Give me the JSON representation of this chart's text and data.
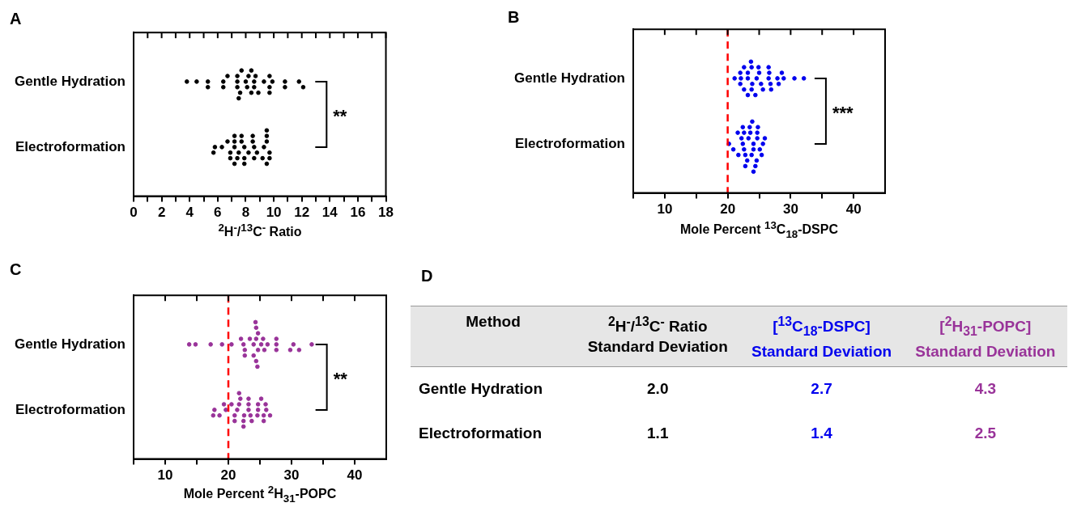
{
  "chart_data": [
    {
      "type": "scatter",
      "title": "A",
      "orientation": "horizontal",
      "xlabel": "$^{2}$H$^{-}$/$^{13}$C$^{-}$ Ratio",
      "categories": [
        "Gentle Hydration",
        "Electroformation"
      ],
      "xlim": [
        0,
        18
      ],
      "xticks": [
        0,
        {
          "value": 1,
          "label": null
        },
        2,
        {
          "value": 3,
          "label": null
        },
        4,
        {
          "value": 5,
          "label": null
        },
        6,
        {
          "value": 7,
          "label": null
        },
        8,
        {
          "value": 9,
          "label": null
        },
        10,
        {
          "value": 11,
          "label": null
        },
        12,
        {
          "value": 13,
          "label": null
        },
        14,
        {
          "value": 15,
          "label": null
        },
        16,
        {
          "value": 17,
          "label": null
        },
        18
      ],
      "grid": false,
      "legend": false,
      "marker": "circle",
      "annotations": [
        "**"
      ],
      "series": [
        {
          "color": "#000000",
          "x": [
            "Gentle Hydration",
            "Gentle Hydration",
            "Gentle Hydration",
            "Gentle Hydration",
            "Gentle Hydration",
            "Gentle Hydration",
            "Gentle Hydration",
            "Gentle Hydration",
            "Gentle Hydration",
            "Gentle Hydration",
            "Gentle Hydration",
            "Gentle Hydration",
            "Gentle Hydration",
            "Gentle Hydration",
            "Gentle Hydration",
            "Gentle Hydration",
            "Gentle Hydration",
            "Gentle Hydration",
            "Gentle Hydration",
            "Gentle Hydration",
            "Gentle Hydration",
            "Gentle Hydration",
            "Gentle Hydration",
            "Gentle Hydration",
            "Gentle Hydration",
            "Gentle Hydration",
            "Gentle Hydration",
            "Gentle Hydration",
            "Gentle Hydration",
            "Gentle Hydration",
            "Gentle Hydration"
          ],
          "values": [
            3.8,
            4.5,
            5.3,
            5.3,
            6.4,
            6.4,
            6.7,
            7.4,
            7.4,
            7.4,
            7.6,
            7.7,
            7.5,
            8.0,
            8.1,
            8.2,
            8.4,
            8.4,
            8.6,
            8.6,
            8.7,
            8.9,
            9.3,
            9.7,
            9.7,
            9.7,
            9.9,
            10.8,
            10.8,
            11.8,
            12.1
          ]
        },
        {
          "color": "#000000",
          "x": [
            "Electroformation",
            "Electroformation",
            "Electroformation",
            "Electroformation",
            "Electroformation",
            "Electroformation",
            "Electroformation",
            "Electroformation",
            "Electroformation",
            "Electroformation",
            "Electroformation",
            "Electroformation",
            "Electroformation",
            "Electroformation",
            "Electroformation",
            "Electroformation",
            "Electroformation",
            "Electroformation",
            "Electroformation",
            "Electroformation",
            "Electroformation",
            "Electroformation",
            "Electroformation",
            "Electroformation",
            "Electroformation",
            "Electroformation",
            "Electroformation",
            "Electroformation",
            "Electroformation",
            "Electroformation",
            "Electroformation"
          ],
          "values": [
            7.2,
            7.9,
            6.9,
            7.2,
            7.5,
            7.7,
            7.9,
            8.2,
            8.6,
            9.3,
            9.7,
            5.8,
            9.5,
            9.7,
            6.3,
            6.9,
            7.2,
            7.7,
            8.5,
            9.5,
            5.7,
            6.7,
            7.4,
            8.6,
            9.5,
            8.5,
            8.8,
            9.2,
            9.5,
            7.2,
            7.9
          ]
        }
      ]
    },
    {
      "type": "scatter",
      "title": "B",
      "orientation": "horizontal",
      "xlabel": "Mole Percent $^{13}$C$_{18}$-DSPC",
      "categories": [
        "Gentle Hydration",
        "Electroformation"
      ],
      "xlim": [
        5,
        45
      ],
      "xticks": [
        {
          "value": 5,
          "label": null
        },
        10,
        {
          "value": 15,
          "label": null
        },
        20,
        {
          "value": 25,
          "label": null
        },
        30,
        {
          "value": 35,
          "label": null
        },
        40
      ],
      "grid": false,
      "legend": false,
      "marker": "circle",
      "annotations": [
        "***"
      ],
      "ref_lines": [
        {
          "axis": "x",
          "value": 20,
          "color": "#ff0000",
          "line_style": "dashed"
        }
      ],
      "series": [
        {
          "color": "#0000ee",
          "x": [
            "Gentle Hydration",
            "Gentle Hydration",
            "Gentle Hydration",
            "Gentle Hydration",
            "Gentle Hydration",
            "Gentle Hydration",
            "Gentle Hydration",
            "Gentle Hydration",
            "Gentle Hydration",
            "Gentle Hydration",
            "Gentle Hydration",
            "Gentle Hydration",
            "Gentle Hydration",
            "Gentle Hydration",
            "Gentle Hydration",
            "Gentle Hydration",
            "Gentle Hydration",
            "Gentle Hydration",
            "Gentle Hydration",
            "Gentle Hydration",
            "Gentle Hydration",
            "Gentle Hydration",
            "Gentle Hydration",
            "Gentle Hydration",
            "Gentle Hydration",
            "Gentle Hydration",
            "Gentle Hydration",
            "Gentle Hydration",
            "Gentle Hydration",
            "Gentle Hydration"
          ],
          "values": [
            26.5,
            22.1,
            23.2,
            23.9,
            24.6,
            25.3,
            26.8,
            22.0,
            23.2,
            23.8,
            25.0,
            25.6,
            27.9,
            28.9,
            21.1,
            26.6,
            30.6,
            32.1,
            22.6,
            23.8,
            24.9,
            28.1,
            28.6,
            26.9,
            22.0,
            22.6,
            23.2,
            23.7,
            24.4,
            26.5
          ]
        },
        {
          "color": "#0000ee",
          "x": [
            "Electroformation",
            "Electroformation",
            "Electroformation",
            "Electroformation",
            "Electroformation",
            "Electroformation",
            "Electroformation",
            "Electroformation",
            "Electroformation",
            "Electroformation",
            "Electroformation",
            "Electroformation",
            "Electroformation",
            "Electroformation",
            "Electroformation",
            "Electroformation",
            "Electroformation",
            "Electroformation",
            "Electroformation",
            "Electroformation",
            "Electroformation",
            "Electroformation",
            "Electroformation",
            "Electroformation",
            "Electroformation",
            "Electroformation",
            "Electroformation",
            "Electroformation",
            "Electroformation"
          ],
          "values": [
            22.4,
            24.1,
            22.6,
            24.1,
            24.7,
            22.2,
            23.3,
            23.8,
            24.7,
            25.6,
            21.7,
            20.2,
            20.9,
            22.8,
            23.6,
            24.6,
            25.1,
            25.9,
            21.6,
            22.6,
            23.1,
            23.5,
            24.4,
            25.4,
            22.8,
            23.9,
            24.8,
            22.4,
            24.1
          ]
        }
      ]
    },
    {
      "type": "scatter",
      "title": "C",
      "orientation": "horizontal",
      "xlabel": "Mole Percent $^{2}$H$_{31}$-POPC",
      "categories": [
        "Gentle Hydration",
        "Electroformation"
      ],
      "xlim": [
        5,
        45
      ],
      "xticks": [
        {
          "value": 5,
          "label": null
        },
        10,
        {
          "value": 15,
          "label": null
        },
        20,
        {
          "value": 25,
          "label": null
        },
        30,
        {
          "value": 35,
          "label": null
        },
        40
      ],
      "grid": false,
      "legend": false,
      "marker": "circle",
      "annotations": [
        "**"
      ],
      "ref_lines": [
        {
          "axis": "x",
          "value": 20,
          "color": "#ff0000",
          "line_style": "dashed"
        }
      ],
      "series": [
        {
          "color": "#993399",
          "x": [
            "Gentle Hydration",
            "Gentle Hydration",
            "Gentle Hydration",
            "Gentle Hydration",
            "Gentle Hydration",
            "Gentle Hydration",
            "Gentle Hydration",
            "Gentle Hydration",
            "Gentle Hydration",
            "Gentle Hydration",
            "Gentle Hydration",
            "Gentle Hydration",
            "Gentle Hydration",
            "Gentle Hydration",
            "Gentle Hydration",
            "Gentle Hydration",
            "Gentle Hydration",
            "Gentle Hydration",
            "Gentle Hydration",
            "Gentle Hydration",
            "Gentle Hydration",
            "Gentle Hydration",
            "Gentle Hydration",
            "Gentle Hydration",
            "Gentle Hydration",
            "Gentle Hydration",
            "Gentle Hydration",
            "Gentle Hydration",
            "Gentle Hydration",
            "Gentle Hydration"
          ],
          "values": [
            24.0,
            24.7,
            24.4,
            22.4,
            24.0,
            24.7,
            25.2,
            26.2,
            27.6,
            30.3,
            13.8,
            14.8,
            17.2,
            19.0,
            20.5,
            22.6,
            23.4,
            24.4,
            25.7,
            27.6,
            29.8,
            31.2,
            33.2,
            22.0,
            22.6,
            24.4,
            25.5,
            27.6,
            24.6,
            24.3
          ]
        },
        {
          "color": "#993399",
          "x": [
            "Electroformation",
            "Electroformation",
            "Electroformation",
            "Electroformation",
            "Electroformation",
            "Electroformation",
            "Electroformation",
            "Electroformation",
            "Electroformation",
            "Electroformation",
            "Electroformation",
            "Electroformation",
            "Electroformation",
            "Electroformation",
            "Electroformation",
            "Electroformation",
            "Electroformation",
            "Electroformation",
            "Electroformation",
            "Electroformation",
            "Electroformation",
            "Electroformation",
            "Electroformation",
            "Electroformation",
            "Electroformation",
            "Electroformation",
            "Electroformation",
            "Electroformation",
            "Electroformation"
          ],
          "values": [
            23.2,
            21.4,
            22.5,
            23.2,
            24.7,
            25.6,
            17.8,
            19.6,
            21.0,
            21.7,
            22.4,
            23.5,
            24.7,
            26.0,
            18.6,
            17.6,
            19.3,
            20.5,
            21.9,
            22.4,
            25.6,
            21.0,
            21.7,
            23.7,
            24.6,
            25.2,
            25.9,
            26.6,
            23.2
          ]
        }
      ]
    },
    {
      "type": "other",
      "title": "D",
      "ylabel": "Method",
      "categories": [
        "Gentle Hydration",
        "Electroformation"
      ],
      "series": [
        {
          "name": "$^{2}$H$^{-}$/$^{13}$C$^{-}$ Ratio Standard Deviation",
          "color": "#000000",
          "values": [
            2.0,
            1.1
          ],
          "value_labels": [
            "2.0",
            "1.1"
          ]
        },
        {
          "name": "[$^{13}$C$_{18}$-DSPC] Standard Deviation",
          "color": "#0000ee",
          "values": [
            2.7,
            1.4
          ],
          "value_labels": [
            "2.7",
            "1.4"
          ]
        },
        {
          "name": "[$^{2}$H$_{31}$-POPC] Standard Deviation",
          "color": "#993399",
          "values": [
            4.3,
            2.5
          ],
          "value_labels": [
            "4.3",
            "2.5"
          ]
        }
      ]
    }
  ]
}
